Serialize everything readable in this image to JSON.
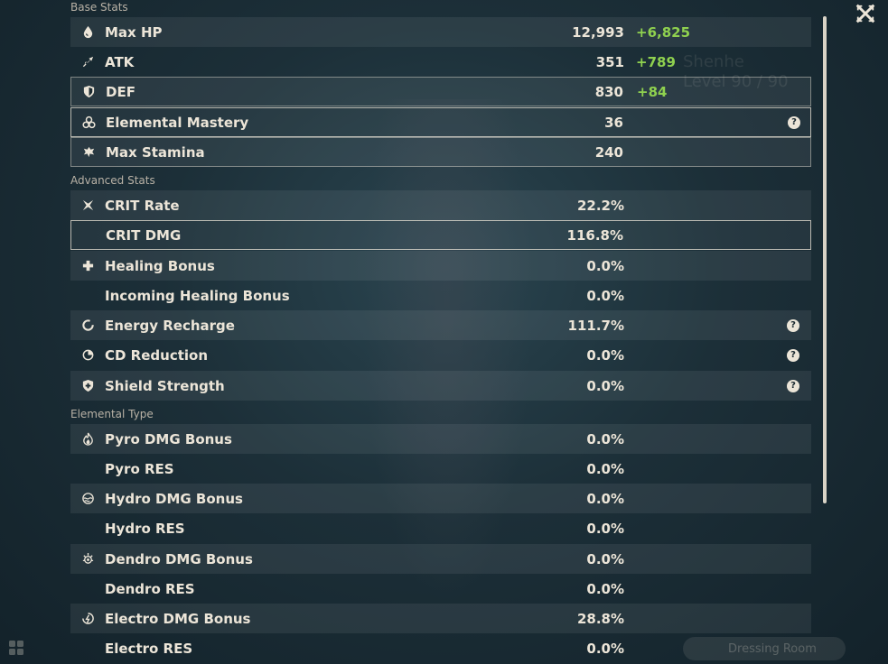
{
  "window": {
    "close_label": "✕",
    "dressing_room": "Dressing Room"
  },
  "background": {
    "character_name": "Shenhe",
    "level_text": "Level 90 / 90"
  },
  "sections": {
    "base": "Base Stats",
    "advanced": "Advanced Stats",
    "elemental": "Elemental Type"
  },
  "base_stats": [
    {
      "icon": "drop-icon",
      "label": "Max HP",
      "value": "12,993",
      "bonus": "+6,825"
    },
    {
      "icon": "sword-icon",
      "label": "ATK",
      "value": "351",
      "bonus": "+789"
    },
    {
      "icon": "shield-icon",
      "label": "DEF",
      "value": "830",
      "bonus": "+84"
    },
    {
      "icon": "mastery-icon",
      "label": "Elemental Mastery",
      "value": "36",
      "help": "?"
    },
    {
      "icon": "stamina-icon",
      "label": "Max Stamina",
      "value": "240"
    }
  ],
  "advanced_stats": [
    {
      "icon": "crit-icon",
      "label": "CRIT Rate",
      "value": "22.2%"
    },
    {
      "label": "CRIT DMG",
      "value": "116.8%"
    },
    {
      "icon": "cross-icon",
      "label": "Healing Bonus",
      "value": "0.0%"
    },
    {
      "label": "Incoming Healing Bonus",
      "value": "0.0%"
    },
    {
      "icon": "energy-icon",
      "label": "Energy Recharge",
      "value": "111.7%",
      "help": "?"
    },
    {
      "icon": "cd-icon",
      "label": "CD Reduction",
      "value": "0.0%",
      "help": "?"
    },
    {
      "icon": "shield-plus-icon",
      "label": "Shield Strength",
      "value": "0.0%",
      "help": "?"
    }
  ],
  "elemental_stats": [
    {
      "icon": "pyro-icon",
      "label": "Pyro DMG Bonus",
      "value": "0.0%"
    },
    {
      "label": "Pyro RES",
      "value": "0.0%"
    },
    {
      "icon": "hydro-icon",
      "label": "Hydro DMG Bonus",
      "value": "0.0%"
    },
    {
      "label": "Hydro RES",
      "value": "0.0%"
    },
    {
      "icon": "dendro-icon",
      "label": "Dendro DMG Bonus",
      "value": "0.0%"
    },
    {
      "label": "Dendro RES",
      "value": "0.0%"
    },
    {
      "icon": "electro-icon",
      "label": "Electro DMG Bonus",
      "value": "28.8%"
    },
    {
      "label": "Electro RES",
      "value": "0.0%"
    }
  ],
  "colors": {
    "text": "#ece5d8",
    "bonus": "#8fd14f",
    "section": "#b9b2a6"
  }
}
